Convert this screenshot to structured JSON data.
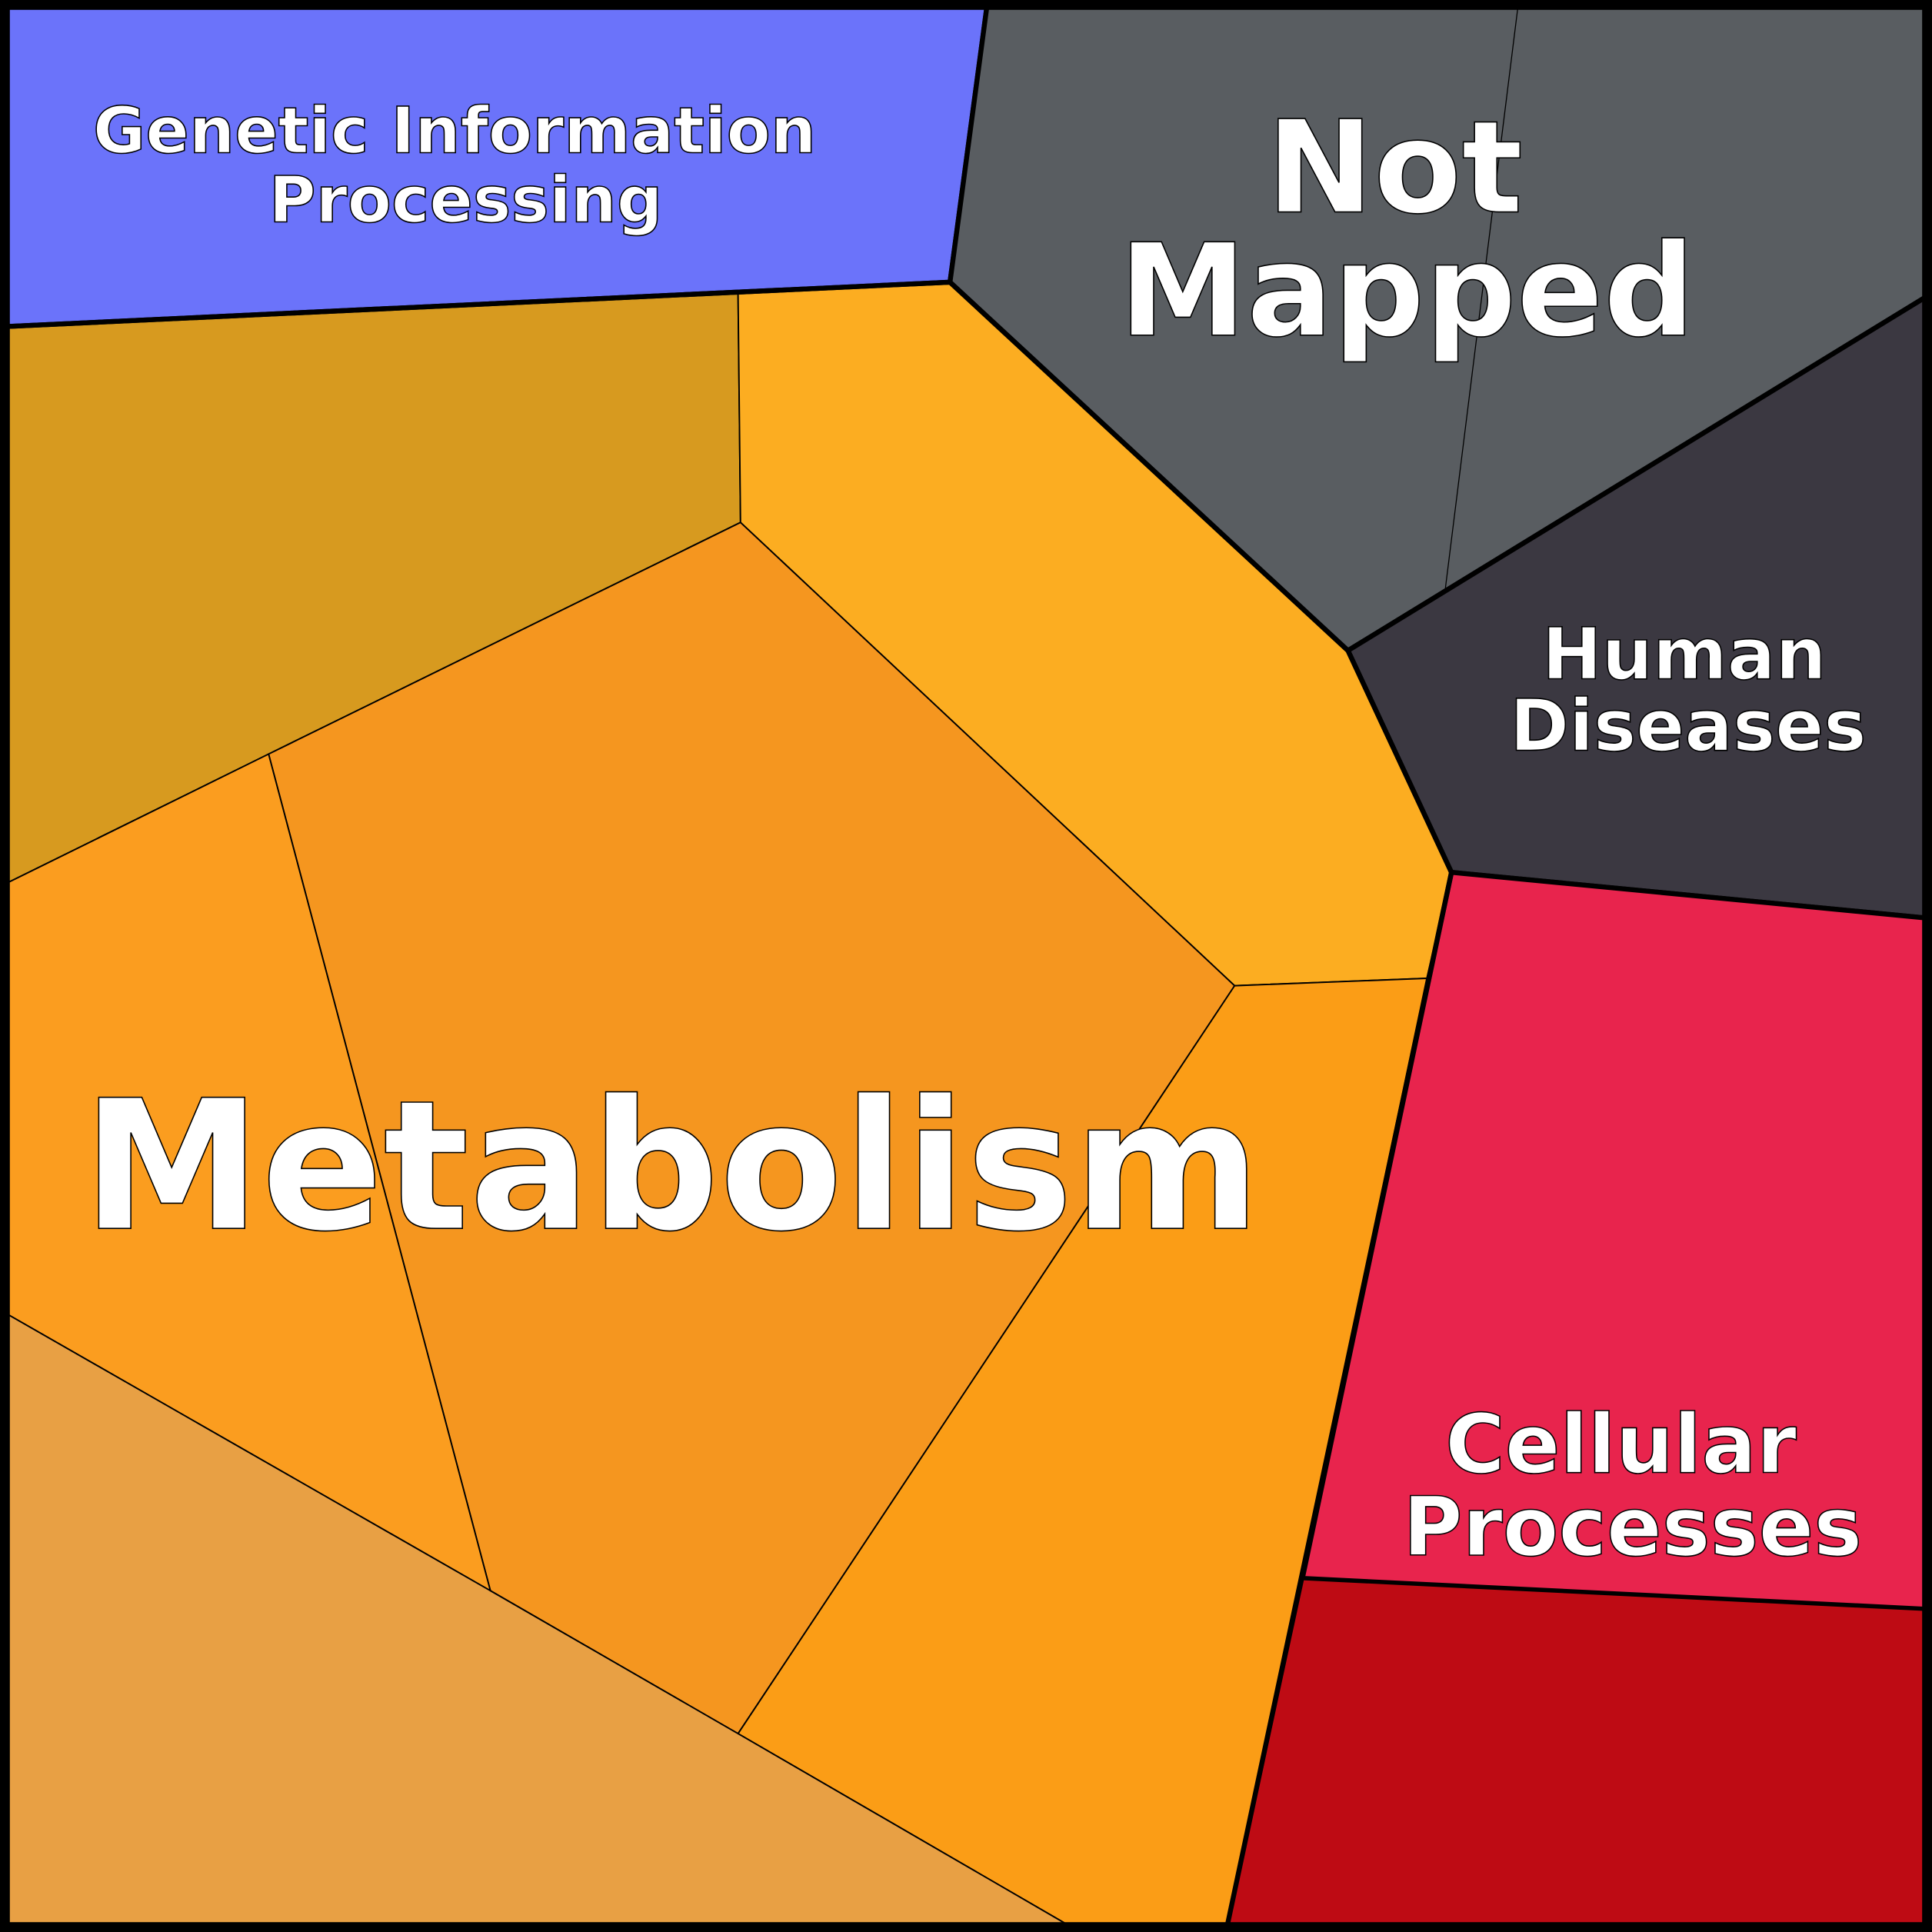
{
  "diagram": {
    "type": "voronoi-treemap",
    "categories": [
      {
        "key": "genetic",
        "label_lines": [
          "Genetic Information",
          "Processing"
        ],
        "color": "#6b73fa"
      },
      {
        "key": "notmapped",
        "label_lines": [
          "Not",
          "Mapped"
        ],
        "color": "#595d61"
      },
      {
        "key": "human",
        "label_lines": [
          "Human",
          "Diseases"
        ],
        "color": "#3b3841"
      },
      {
        "key": "cellular",
        "label_lines": [
          "Cellular",
          "Processes"
        ],
        "color": "#e8244d"
      },
      {
        "key": "metabolism",
        "label_lines": [
          "Metabolism"
        ],
        "color": "#f5961f"
      }
    ],
    "cell_colors": {
      "genetic": "#6b73fa",
      "notmapped": "#595d61",
      "human": "#3b3841",
      "cellular_top": "#e8244d",
      "cellular_bottom": "#be0b14",
      "metab_olive": "#d79a1f",
      "metab_yellow": "#fcad21",
      "metab_center": "#f5961f",
      "metab_left": "#fb9d1f",
      "metab_right": "#fb9d16",
      "metab_bottom": "#e8a044"
    }
  }
}
